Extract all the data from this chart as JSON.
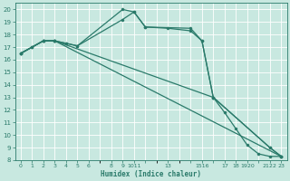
{
  "xlabel": "Humidex (Indice chaleur)",
  "bg_color": "#c8e8e0",
  "grid_color": "#b0d8d0",
  "line_color": "#2a7a6a",
  "spine_color": "#2a7a6a",
  "xlim": [
    -0.5,
    23.5
  ],
  "ylim": [
    8,
    20.5
  ],
  "xtick_positions": [
    0,
    1,
    2,
    3,
    4,
    5,
    6,
    8,
    9,
    10,
    11,
    13,
    15,
    16,
    17,
    18,
    19,
    20,
    21,
    22,
    23
  ],
  "xtick_labels": [
    "0",
    "1",
    "2",
    "3",
    "4",
    "5",
    "6",
    "8",
    "9",
    "1011",
    "",
    "13",
    "",
    "1516",
    "",
    "17",
    "18",
    "1920",
    "",
    "2122",
    "23"
  ],
  "ytick_positions": [
    8,
    9,
    10,
    11,
    12,
    13,
    14,
    15,
    16,
    17,
    18,
    19,
    20
  ],
  "ytick_labels": [
    "8",
    "9",
    "10",
    "11",
    "12",
    "13",
    "14",
    "15",
    "16",
    "17",
    "18",
    "19",
    "20"
  ],
  "series": [
    {
      "x": [
        0,
        1,
        2,
        3,
        4,
        5,
        9,
        10,
        11,
        13,
        15,
        16,
        17,
        18,
        19,
        20,
        21,
        22,
        23
      ],
      "y": [
        16.5,
        17.0,
        17.5,
        17.5,
        17.3,
        17.1,
        20.0,
        19.8,
        18.6,
        18.5,
        18.3,
        17.5,
        13.0,
        11.8,
        10.5,
        9.2,
        8.5,
        8.3,
        8.3
      ]
    },
    {
      "x": [
        0,
        1,
        2,
        3,
        4,
        5,
        9,
        10,
        11,
        15,
        16,
        17,
        22,
        23
      ],
      "y": [
        16.5,
        17.0,
        17.5,
        17.5,
        17.3,
        17.1,
        19.2,
        19.8,
        18.6,
        18.5,
        17.5,
        13.0,
        9.0,
        8.3
      ]
    },
    {
      "x": [
        0,
        2,
        3,
        17,
        22,
        23
      ],
      "y": [
        16.5,
        17.5,
        17.5,
        13.0,
        9.0,
        8.3
      ]
    },
    {
      "x": [
        0,
        2,
        3,
        23
      ],
      "y": [
        16.5,
        17.5,
        17.5,
        8.3
      ]
    }
  ]
}
